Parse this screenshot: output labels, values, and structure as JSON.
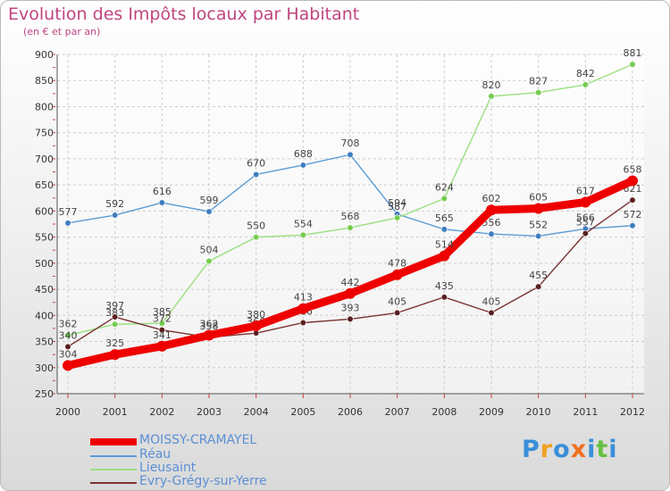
{
  "header": {
    "title": "Evolution des Impôts locaux par Habitant",
    "subtitle": "(en € et par an)"
  },
  "logo": {
    "text": "Proxiti"
  },
  "chart_data": {
    "type": "line",
    "title": "Evolution des Impôts locaux par Habitant",
    "subtitle": "(en € et par an)",
    "x": [
      2000,
      2001,
      2002,
      2003,
      2004,
      2005,
      2006,
      2007,
      2008,
      2009,
      2010,
      2011,
      2012
    ],
    "ylim": [
      250,
      900
    ],
    "yticks": [
      250,
      300,
      350,
      400,
      450,
      500,
      550,
      600,
      650,
      700,
      750,
      800,
      850,
      900
    ],
    "grid": true,
    "legend_position": "bottom",
    "series": [
      {
        "name": "Réau",
        "color": "#5b9bd5",
        "dot": "#3f7fc0",
        "values": [
          577,
          592,
          616,
          599,
          670,
          688,
          708,
          594,
          565,
          556,
          552,
          566,
          572
        ]
      },
      {
        "name": "Lieusaint",
        "color": "#99e07e",
        "dot": "#74cc4f",
        "values": [
          362,
          383,
          385,
          504,
          550,
          554,
          568,
          587,
          624,
          820,
          827,
          842,
          881
        ]
      },
      {
        "name": "Evry-Grégy-sur-Yerre",
        "color": "#7a3333",
        "dot": "#5a1f1f",
        "values": [
          340,
          397,
          372,
          358,
          366,
          386,
          393,
          405,
          435,
          405,
          455,
          557,
          621
        ]
      },
      {
        "name": "MOISSY-CRAMAYEL",
        "color": "#ee0000",
        "dot": "#ee0000",
        "bold": true,
        "values": [
          304,
          325,
          341,
          362,
          380,
          413,
          442,
          478,
          514,
          602,
          605,
          617,
          658
        ]
      }
    ],
    "legend": [
      "MOISSY-CRAMAYEL",
      "Réau",
      "Lieusaint",
      "Evry-Grégy-sur-Yerre"
    ]
  }
}
